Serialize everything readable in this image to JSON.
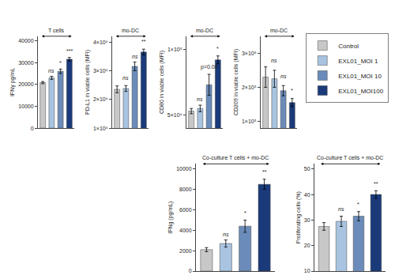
{
  "chart_data": [
    {
      "type": "bar",
      "title": "T cells",
      "ylabel": "IFNγ pg/mL",
      "categories": [
        "Control",
        "EXL01_MOI 1",
        "EXL01_MOI 10",
        "EXL01_MOI100"
      ],
      "colors": [
        "#c8c8c8",
        "#a8c4e0",
        "#6b8cba",
        "#1a3a7a"
      ],
      "values": [
        20800,
        23000,
        26000,
        31500
      ],
      "errors": [
        500,
        700,
        1000,
        800
      ],
      "ylim": [
        0,
        42000
      ],
      "yticks": [
        0,
        10000,
        20000,
        30000,
        40000
      ],
      "annotations": [
        {
          "text": "ns",
          "category": "EXL01_MOI 1",
          "y": 24200
        },
        {
          "text": "*",
          "category": "EXL01_MOI 10",
          "y": 27800
        },
        {
          "text": "***",
          "category": "EXL01_MOI100",
          "y": 33200
        }
      ],
      "grid": false,
      "tick_labels": "y",
      "legend": "upper right"
    },
    {
      "type": "bar",
      "title": "mo-DC",
      "ylabel": "PD-L1 in viable cells (MFI)",
      "categories": [
        "Control",
        "EXL01_MOI 1",
        "EXL01_MOI 10",
        "EXL01_MOI100"
      ],
      "colors": [
        "#c8c8c8",
        "#a8c4e0",
        "#6b8cba",
        "#1a3a7a"
      ],
      "values": [
        2350000,
        2380000,
        3150000,
        3650000
      ],
      "errors": [
        120000,
        100000,
        150000,
        100000
      ],
      "ylim": [
        1000000,
        4200000
      ],
      "yticks": [
        {
          "value": 1000000,
          "label": "1×10⁶"
        },
        {
          "value": 2000000,
          "label": "2×10⁶"
        },
        {
          "value": 3000000,
          "label": "3×10⁶"
        },
        {
          "value": 4000000,
          "label": "4×10⁶"
        }
      ],
      "annotations": [
        {
          "text": "ns",
          "category": "EXL01_MOI 1",
          "y": 2600000
        },
        {
          "text": "ns",
          "category": "EXL01_MOI 10",
          "y": 3350000
        },
        {
          "text": "**",
          "category": "EXL01_MOI100",
          "y": 3870000
        }
      ],
      "grid": false,
      "tick_labels": "y",
      "legend": "upper right"
    },
    {
      "type": "bar",
      "title": "mo-DC",
      "ylabel": "CD80 in viable cells (MFI)",
      "categories": [
        "Control",
        "EXL01_MOI 1",
        "EXL01_MOI 10",
        "EXL01_MOI100"
      ],
      "colors": [
        "#c8c8c8",
        "#a8c4e0",
        "#6b8cba",
        "#1a3a7a"
      ],
      "values": [
        53000,
        55000,
        73000,
        92000
      ],
      "errors": [
        2000,
        2500,
        8000,
        3000
      ],
      "ylim": [
        40000,
        110000
      ],
      "yticks": [
        {
          "value": 50000,
          "label": "5×10⁴"
        },
        {
          "value": 100000,
          "label": "1×10⁵"
        }
      ],
      "annotations": [
        {
          "text": "ns",
          "category": "EXL01_MOI 1",
          "y": 59000
        },
        {
          "text": "p=0.08",
          "category": "EXL01_MOI 10",
          "y": 83000
        },
        {
          "text": "*",
          "category": "EXL01_MOI100",
          "y": 97000
        }
      ],
      "grid": false,
      "tick_labels": "y",
      "legend": "upper right"
    },
    {
      "type": "bar",
      "title": "mo-DC",
      "ylabel": "CD209 in viable cells (MFI)",
      "categories": [
        "Control",
        "EXL01_MOI 1",
        "EXL01_MOI 10",
        "EXL01_MOI100"
      ],
      "colors": [
        "#c8c8c8",
        "#a8c4e0",
        "#6b8cba",
        "#1a3a7a"
      ],
      "values": [
        230000,
        225000,
        190000,
        155000
      ],
      "errors": [
        30000,
        25000,
        15000,
        12000
      ],
      "ylim": [
        80000,
        350000
      ],
      "yticks": [
        {
          "value": 100000,
          "label": "1×10⁵"
        },
        {
          "value": 200000,
          "label": "2×10⁵"
        },
        {
          "value": 300000,
          "label": "3×10⁵"
        }
      ],
      "annotations": [
        {
          "text": "ns",
          "category": "EXL01_MOI 1",
          "y": 265000
        },
        {
          "text": "ns",
          "category": "EXL01_MOI 10",
          "y": 220000
        },
        {
          "text": "*",
          "category": "EXL01_MOI100",
          "y": 178000
        }
      ],
      "grid": false,
      "tick_labels": "y",
      "legend": "upper right"
    },
    {
      "type": "bar",
      "title": "Co-culture T cells + mo-DC",
      "ylabel": "IFNg (pg/mL)",
      "categories": [
        "Control",
        "EXL01_MOI 1",
        "EXL01_MOI 10",
        "EXL01_MOI100"
      ],
      "colors": [
        "#c8c8c8",
        "#a8c4e0",
        "#6b8cba",
        "#1a3a7a"
      ],
      "values": [
        2100,
        2700,
        4400,
        8500
      ],
      "errors": [
        200,
        350,
        600,
        500
      ],
      "ylim": [
        0,
        10500
      ],
      "yticks": [
        0,
        2000,
        4000,
        6000,
        8000,
        10000
      ],
      "annotations": [
        {
          "text": "ns",
          "category": "EXL01_MOI 1",
          "y": 3200
        },
        {
          "text": "*",
          "category": "EXL01_MOI 10",
          "y": 5300
        },
        {
          "text": "**",
          "category": "EXL01_MOI100",
          "y": 9300
        }
      ],
      "grid": false,
      "tick_labels": "y",
      "legend": "upper right"
    },
    {
      "type": "bar",
      "title": "Co-culture T cells + mo-DC",
      "ylabel": "Proliferating cells (%)",
      "categories": [
        "Control",
        "EXL01_MOI 1",
        "EXL01_MOI 10",
        "EXL01_MOI100"
      ],
      "colors": [
        "#c8c8c8",
        "#a8c4e0",
        "#6b8cba",
        "#1a3a7a"
      ],
      "values": [
        27.5,
        29.5,
        31.5,
        40.0
      ],
      "errors": [
        1.5,
        2.0,
        1.8,
        1.5
      ],
      "ylim": [
        10,
        52
      ],
      "yticks": [
        10,
        20,
        30,
        40,
        50
      ],
      "annotations": [
        {
          "text": "ns",
          "category": "EXL01_MOI 1",
          "y": 32.5
        },
        {
          "text": "*",
          "category": "EXL01_MOI 10",
          "y": 34.5
        },
        {
          "text": "**",
          "category": "EXL01_MOI100",
          "y": 42.5
        }
      ],
      "grid": false,
      "tick_labels": "y",
      "legend": "upper right"
    }
  ]
}
